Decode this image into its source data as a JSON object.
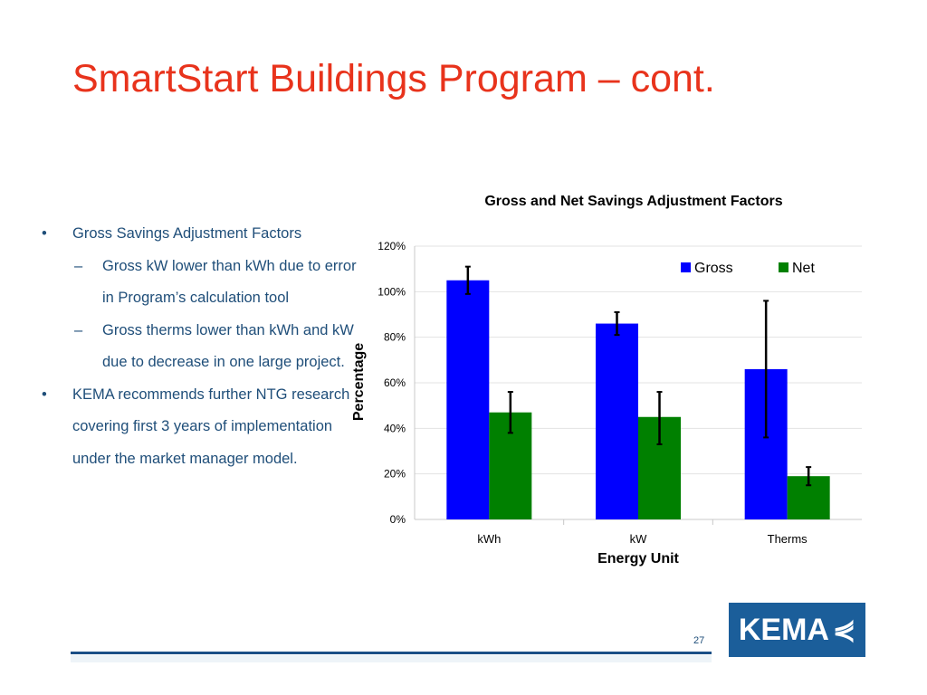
{
  "slide": {
    "title": "SmartStart Buildings Program – cont.",
    "page_number": "27",
    "logo_text": "KEMA"
  },
  "bullets": [
    {
      "level": 1,
      "marker": "•",
      "text": "Gross Savings Adjustment Factors"
    },
    {
      "level": 2,
      "marker": "–",
      "text": "Gross kW lower than kWh due to error in Program’s calculation tool"
    },
    {
      "level": 2,
      "marker": "–",
      "text": "Gross therms lower than kWh and kW due to decrease in one large project."
    },
    {
      "level": 1,
      "marker": "•",
      "text": "KEMA recommends further NTG research covering first 3 years of implementation under the market manager model."
    }
  ],
  "chart_data": {
    "type": "bar",
    "title": "Gross and Net Savings Adjustment Factors",
    "xlabel": "Energy Unit",
    "ylabel": "Percentage",
    "categories": [
      "kWh",
      "kW",
      "Therms"
    ],
    "ylim": [
      0,
      120
    ],
    "yticks": [
      "0%",
      "20%",
      "40%",
      "60%",
      "80%",
      "100%",
      "120%"
    ],
    "grid": true,
    "legend": "top-right",
    "series": [
      {
        "name": "Gross",
        "color": "#0000ff",
        "values": [
          105,
          86,
          66
        ],
        "error_low": [
          99,
          81,
          36
        ],
        "error_high": [
          111,
          91,
          96
        ]
      },
      {
        "name": "Net",
        "color": "#008000",
        "values": [
          47,
          45,
          19
        ],
        "error_low": [
          38,
          33,
          15
        ],
        "error_high": [
          56,
          56,
          23
        ]
      }
    ]
  }
}
